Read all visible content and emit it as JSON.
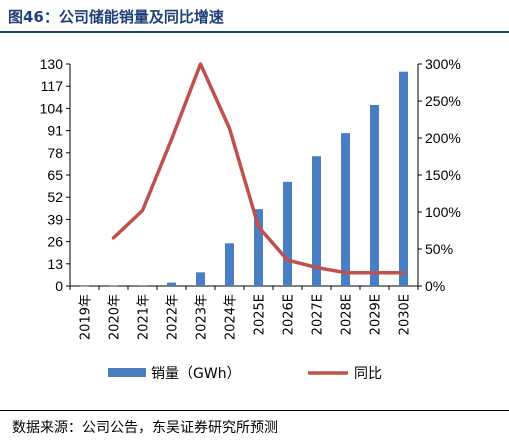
{
  "figure": {
    "title": "图46：公司储能销量及同比增速",
    "source": "数据来源：公司公告，东吴证券研究所预测"
  },
  "colors": {
    "bar": "#4a7ec2",
    "line": "#c0504d",
    "title": "#1f3f7a"
  },
  "chart_data": {
    "type": "bar",
    "title": "图46：公司储能销量及同比增速",
    "categories": [
      "2019年",
      "2020年",
      "2021年",
      "2022年",
      "2023年",
      "2024年",
      "2025E",
      "2026E",
      "2027E",
      "2028E",
      "2029E",
      "2030E"
    ],
    "series": [
      {
        "name": "销量（GWh）",
        "type": "bar",
        "axis": "left",
        "values": [
          0.1,
          0.2,
          0.4,
          2.0,
          8.0,
          25.0,
          45.0,
          61.0,
          76.0,
          89.5,
          106.0,
          125.5
        ]
      },
      {
        "name": "同比",
        "type": "line",
        "axis": "right",
        "values": [
          null,
          0.65,
          1.02,
          1.98,
          3.0,
          2.13,
          0.8,
          0.35,
          0.25,
          0.18,
          0.18,
          0.18
        ]
      }
    ],
    "y_left": {
      "ylim": [
        0,
        130
      ],
      "ticks": [
        0,
        13,
        26,
        39,
        52,
        65,
        78,
        91,
        104,
        117,
        130
      ],
      "tick_labels": [
        "0",
        "13",
        "26",
        "39",
        "52",
        "65",
        "78",
        "91",
        "104",
        "117",
        "130"
      ]
    },
    "y_right": {
      "ylim": [
        0,
        3.0
      ],
      "ticks": [
        0,
        0.5,
        1.0,
        1.5,
        2.0,
        2.5,
        3.0
      ],
      "tick_labels": [
        "0%",
        "50%",
        "100%",
        "150%",
        "200%",
        "250%",
        "300%"
      ]
    },
    "legend": {
      "placement": "bottom",
      "entries": [
        "销量（GWh）",
        "同比"
      ]
    },
    "grid": false
  }
}
